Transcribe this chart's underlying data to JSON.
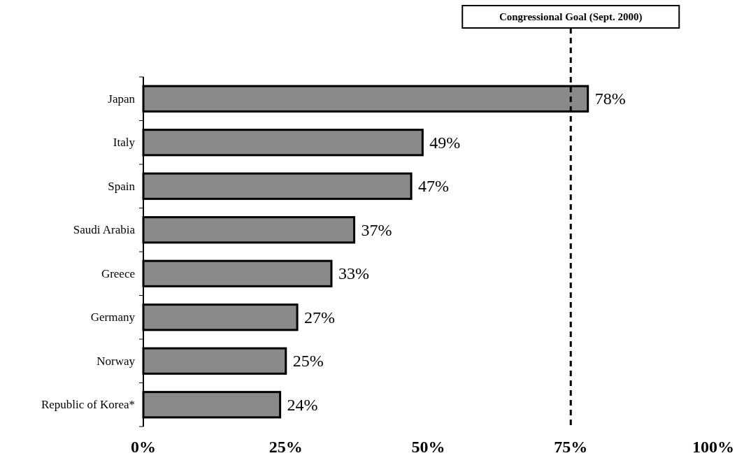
{
  "chart_data": {
    "type": "bar",
    "orientation": "horizontal",
    "categories": [
      "Japan",
      "Italy",
      "Spain",
      "Saudi Arabia",
      "Greece",
      "Germany",
      "Norway",
      "Republic of Korea*"
    ],
    "values": [
      78,
      49,
      47,
      37,
      33,
      27,
      25,
      24
    ],
    "value_labels": [
      "78%",
      "49%",
      "47%",
      "37%",
      "33%",
      "27%",
      "25%",
      "24%"
    ],
    "color": "#8a8a8a",
    "xlim": [
      0,
      100
    ],
    "xticks": [
      {
        "value": 0,
        "label": "0%"
      },
      {
        "value": 25,
        "label": "25%"
      },
      {
        "value": 50,
        "label": "50%"
      },
      {
        "value": 75,
        "label": "75%"
      },
      {
        "value": 100,
        "label": "100%"
      }
    ],
    "ref_lines": [
      {
        "axis": "x",
        "value": 75,
        "label": "Congressional Goal (Sept. 2000)",
        "color": "#000000",
        "line_style": "dashed"
      }
    ],
    "grid": false
  }
}
